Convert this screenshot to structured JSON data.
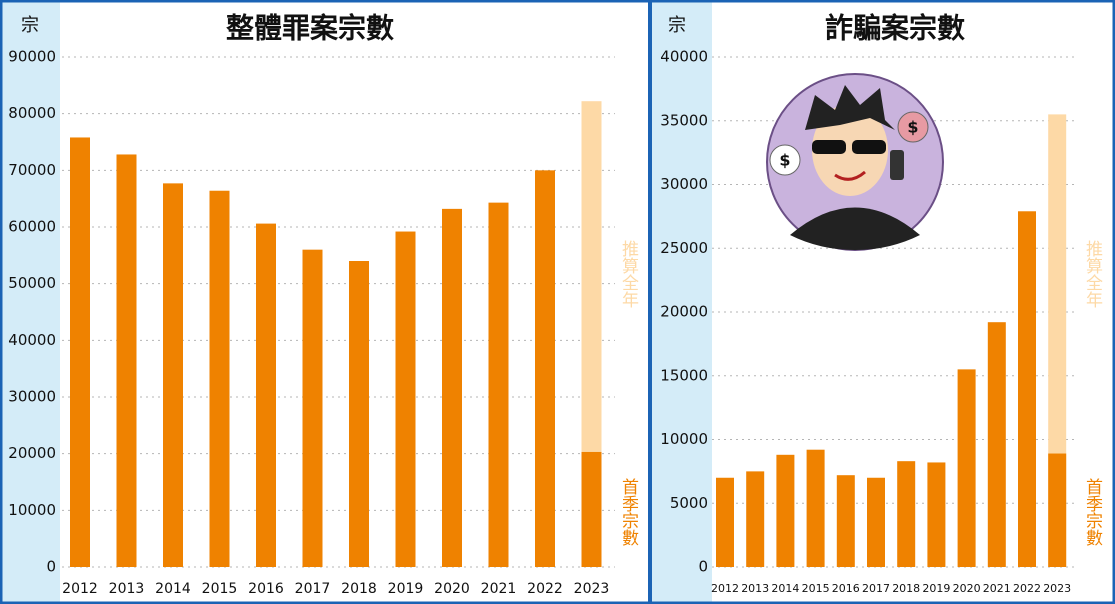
{
  "chart_data": [
    {
      "type": "bar",
      "title": "整體罪案宗數",
      "unit": "宗",
      "categories": [
        "2012",
        "2013",
        "2014",
        "2015",
        "2016",
        "2017",
        "2018",
        "2019",
        "2020",
        "2021",
        "2022",
        "2023"
      ],
      "series": [
        {
          "name": "首季宗數",
          "color": "#ef8200",
          "values": [
            75800,
            72800,
            67700,
            66400,
            60600,
            56000,
            54000,
            59200,
            63200,
            64300,
            70000,
            20300
          ]
        },
        {
          "name": "推算全年",
          "color": "#fdd9a6",
          "values": [
            null,
            null,
            null,
            null,
            null,
            null,
            null,
            null,
            null,
            null,
            null,
            82200
          ]
        }
      ],
      "ylim": [
        0,
        90000
      ],
      "yticks": [
        0,
        10000,
        20000,
        30000,
        40000,
        50000,
        60000,
        70000,
        80000,
        90000
      ],
      "grid": true
    },
    {
      "type": "bar",
      "title": "詐騙案宗數",
      "unit": "宗",
      "categories": [
        "2012",
        "2013",
        "2014",
        "2015",
        "2016",
        "2017",
        "2018",
        "2019",
        "2020",
        "2021",
        "2022",
        "2023"
      ],
      "series": [
        {
          "name": "首季宗數",
          "color": "#ef8200",
          "values": [
            7000,
            7500,
            8800,
            9200,
            7200,
            7000,
            8300,
            8200,
            15500,
            19200,
            27900,
            8900
          ]
        },
        {
          "name": "推算全年",
          "color": "#fdd9a6",
          "values": [
            null,
            null,
            null,
            null,
            null,
            null,
            null,
            null,
            null,
            null,
            null,
            35500
          ]
        }
      ],
      "ylim": [
        0,
        40000
      ],
      "yticks": [
        0,
        5000,
        10000,
        15000,
        20000,
        25000,
        30000,
        35000,
        40000
      ],
      "grid": true
    }
  ]
}
